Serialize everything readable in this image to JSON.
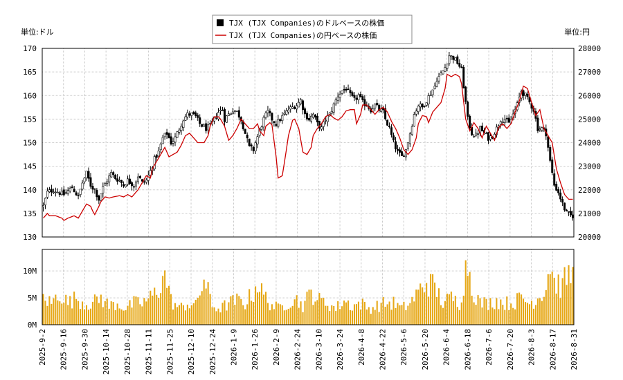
{
  "chart_data": {
    "type": "candlestick",
    "legend": {
      "placement": "top-center",
      "items": [
        {
          "label": "TJX (TJX Companies)のドルベースの株価",
          "color": "#000000",
          "marker": "square"
        },
        {
          "label": "TJX (TJX Companies)の円ベースの株価",
          "color": "#cc0000",
          "marker": "line"
        }
      ]
    },
    "left_axis": {
      "unit_label": "単位:ドル",
      "ylim": [
        130,
        170
      ],
      "ticks": [
        "130",
        "135",
        "140",
        "145",
        "150",
        "155",
        "160",
        "165",
        "170"
      ]
    },
    "right_axis": {
      "unit_label": "単位:円",
      "ylim": [
        20000,
        28000
      ],
      "ticks": [
        "20000",
        "21000",
        "22000",
        "23000",
        "24000",
        "25000",
        "26000",
        "27000",
        "28000"
      ]
    },
    "volume_axis": {
      "ylim": [
        0,
        14000000
      ],
      "ticks": [
        "0M",
        "5M",
        "10M"
      ]
    },
    "x_tick_labels": [
      "2025-9-2",
      "2025-9-16",
      "2025-9-30",
      "2025-10-14",
      "2025-10-28",
      "2025-11-11",
      "2025-11-25",
      "2025-12-10",
      "2025-12-24",
      "2026-1-9",
      "2026-1-26",
      "2026-2-9",
      "2026-2-24",
      "2026-3-10",
      "2026-3-24",
      "2026-4-8",
      "2026-4-22",
      "2026-5-6",
      "2026-5-20",
      "2026-6-4",
      "2026-6-18",
      "2026-7-6",
      "2026-7-20",
      "2026-8-3",
      "2026-8-17",
      "2026-8-31"
    ],
    "usd_close_anchors": [
      [
        0,
        136.5
      ],
      [
        2,
        139.5
      ],
      [
        5,
        140
      ],
      [
        10,
        139
      ],
      [
        14,
        140.5
      ],
      [
        17,
        138.5
      ],
      [
        19,
        141.5
      ],
      [
        21,
        143.5
      ],
      [
        23,
        141
      ],
      [
        25,
        140
      ],
      [
        27,
        138
      ],
      [
        29,
        140.5
      ],
      [
        31,
        142
      ],
      [
        33,
        143.5
      ],
      [
        35,
        142.5
      ],
      [
        37,
        142
      ],
      [
        39,
        141
      ],
      [
        41,
        142
      ],
      [
        44,
        141
      ],
      [
        46,
        143
      ],
      [
        48,
        141.5
      ],
      [
        50,
        142
      ],
      [
        52,
        144
      ],
      [
        54,
        146.5
      ],
      [
        56,
        148
      ],
      [
        58,
        151
      ],
      [
        60,
        152
      ],
      [
        62,
        150
      ],
      [
        64,
        151
      ],
      [
        66,
        153
      ],
      [
        68,
        155
      ],
      [
        70,
        156
      ],
      [
        72,
        156
      ],
      [
        74,
        155.5
      ],
      [
        76,
        154
      ],
      [
        79,
        153
      ],
      [
        81,
        153.5
      ],
      [
        83,
        155
      ],
      [
        85,
        156.5
      ],
      [
        87,
        157
      ],
      [
        88,
        155
      ],
      [
        90,
        156
      ],
      [
        92,
        157
      ],
      [
        94,
        156.5
      ],
      [
        96,
        155
      ],
      [
        98,
        152
      ],
      [
        100,
        149
      ],
      [
        102,
        148.5
      ],
      [
        103,
        150
      ],
      [
        105,
        152.5
      ],
      [
        107,
        155
      ],
      [
        109,
        156.5
      ],
      [
        111,
        155
      ],
      [
        113,
        154
      ],
      [
        115,
        155
      ],
      [
        117,
        156
      ],
      [
        119,
        157
      ],
      [
        121,
        157.5
      ],
      [
        123,
        158
      ],
      [
        125,
        159
      ],
      [
        127,
        156
      ],
      [
        129,
        155
      ],
      [
        131,
        156
      ],
      [
        133,
        154
      ],
      [
        135,
        153
      ],
      [
        137,
        155
      ],
      [
        139,
        156
      ],
      [
        141,
        158
      ],
      [
        143,
        160
      ],
      [
        145,
        161
      ],
      [
        147,
        161.5
      ],
      [
        149,
        160
      ],
      [
        151,
        159
      ],
      [
        153,
        160
      ],
      [
        155,
        158.5
      ],
      [
        157,
        158
      ],
      [
        159,
        157
      ],
      [
        161,
        158
      ],
      [
        163,
        157
      ],
      [
        165,
        156.5
      ],
      [
        166,
        155
      ],
      [
        168,
        153
      ],
      [
        170,
        150
      ],
      [
        172,
        148
      ],
      [
        174,
        147
      ],
      [
        176,
        148.5
      ],
      [
        178,
        152
      ],
      [
        180,
        156
      ],
      [
        182,
        158
      ],
      [
        184,
        157.5
      ],
      [
        186,
        159
      ],
      [
        188,
        160.5
      ],
      [
        190,
        162
      ],
      [
        191,
        163.5
      ],
      [
        193,
        164.5
      ],
      [
        195,
        166
      ],
      [
        197,
        168.5
      ],
      [
        199,
        168
      ],
      [
        201,
        167
      ],
      [
        203,
        165.5
      ],
      [
        204,
        162
      ],
      [
        206,
        155
      ],
      [
        208,
        152
      ],
      [
        210,
        151.5
      ],
      [
        212,
        153
      ],
      [
        214,
        152
      ],
      [
        216,
        151
      ],
      [
        218,
        151.5
      ],
      [
        220,
        153
      ],
      [
        222,
        155
      ],
      [
        224,
        155
      ],
      [
        226,
        154
      ],
      [
        228,
        156
      ],
      [
        230,
        158
      ],
      [
        232,
        161
      ],
      [
        234,
        160
      ],
      [
        236,
        158.5
      ],
      [
        238,
        157
      ],
      [
        240,
        153
      ],
      [
        242,
        153
      ],
      [
        244,
        152
      ],
      [
        246,
        146
      ],
      [
        248,
        141
      ],
      [
        250,
        139.5
      ],
      [
        252,
        137
      ],
      [
        254,
        135
      ],
      [
        256,
        134.5
      ]
    ],
    "jpy_close_anchors": [
      [
        0,
        20800
      ],
      [
        2,
        21000
      ],
      [
        3,
        20900
      ],
      [
        6,
        20900
      ],
      [
        9,
        20800
      ],
      [
        10,
        20700
      ],
      [
        12,
        20800
      ],
      [
        15,
        20900
      ],
      [
        17,
        20800
      ],
      [
        19,
        21100
      ],
      [
        21,
        21400
      ],
      [
        23,
        21300
      ],
      [
        24,
        21100
      ],
      [
        25,
        20950
      ],
      [
        27,
        21300
      ],
      [
        28,
        21500
      ],
      [
        30,
        21700
      ],
      [
        32,
        21650
      ],
      [
        34,
        21700
      ],
      [
        37,
        21750
      ],
      [
        39,
        21700
      ],
      [
        41,
        21800
      ],
      [
        43,
        21700
      ],
      [
        45,
        21900
      ],
      [
        46,
        22000
      ],
      [
        48,
        22300
      ],
      [
        50,
        22600
      ],
      [
        52,
        22500
      ],
      [
        53,
        22900
      ],
      [
        55,
        23200
      ],
      [
        57,
        23500
      ],
      [
        59,
        23800
      ],
      [
        61,
        23400
      ],
      [
        63,
        23500
      ],
      [
        65,
        23600
      ],
      [
        67,
        23900
      ],
      [
        69,
        24300
      ],
      [
        71,
        24400
      ],
      [
        73,
        24200
      ],
      [
        75,
        24000
      ],
      [
        78,
        24000
      ],
      [
        80,
        24300
      ],
      [
        81,
        24700
      ],
      [
        83,
        25100
      ],
      [
        85,
        25100
      ],
      [
        86,
        25000
      ],
      [
        88,
        24700
      ],
      [
        90,
        24100
      ],
      [
        92,
        24300
      ],
      [
        94,
        24600
      ],
      [
        96,
        25000
      ],
      [
        98,
        24800
      ],
      [
        100,
        24600
      ],
      [
        102,
        24600
      ],
      [
        104,
        24800
      ],
      [
        105,
        24500
      ],
      [
        107,
        24300
      ],
      [
        108,
        24700
      ],
      [
        110,
        24850
      ],
      [
        111,
        24750
      ],
      [
        113,
        23400
      ],
      [
        114,
        22500
      ],
      [
        116,
        22600
      ],
      [
        118,
        23700
      ],
      [
        119,
        24300
      ],
      [
        121,
        24950
      ],
      [
        122,
        25000
      ],
      [
        124,
        24600
      ],
      [
        126,
        23600
      ],
      [
        128,
        23500
      ],
      [
        130,
        23800
      ],
      [
        131,
        24300
      ],
      [
        133,
        24600
      ],
      [
        135,
        24800
      ],
      [
        137,
        25100
      ],
      [
        139,
        25200
      ],
      [
        141,
        25050
      ],
      [
        143,
        24950
      ],
      [
        145,
        25100
      ],
      [
        147,
        25350
      ],
      [
        149,
        25400
      ],
      [
        151,
        25400
      ],
      [
        152,
        24800
      ],
      [
        154,
        25200
      ],
      [
        155,
        25600
      ],
      [
        157,
        25600
      ],
      [
        159,
        25400
      ],
      [
        161,
        25200
      ],
      [
        163,
        25400
      ],
      [
        165,
        25500
      ],
      [
        167,
        25300
      ],
      [
        169,
        24900
      ],
      [
        171,
        24600
      ],
      [
        173,
        24200
      ],
      [
        175,
        23700
      ],
      [
        177,
        23500
      ],
      [
        179,
        23700
      ],
      [
        181,
        24200
      ],
      [
        182,
        24800
      ],
      [
        184,
        25150
      ],
      [
        186,
        25100
      ],
      [
        187,
        24850
      ],
      [
        189,
        25300
      ],
      [
        191,
        25500
      ],
      [
        193,
        25700
      ],
      [
        195,
        26300
      ],
      [
        196,
        26900
      ],
      [
        198,
        26800
      ],
      [
        200,
        26900
      ],
      [
        202,
        26800
      ],
      [
        203,
        26500
      ],
      [
        205,
        25000
      ],
      [
        207,
        24500
      ],
      [
        209,
        24850
      ],
      [
        211,
        24600
      ],
      [
        213,
        24200
      ],
      [
        215,
        24700
      ],
      [
        217,
        24400
      ],
      [
        219,
        24100
      ],
      [
        221,
        24650
      ],
      [
        223,
        24800
      ],
      [
        225,
        24600
      ],
      [
        227,
        24800
      ],
      [
        229,
        25300
      ],
      [
        231,
        25750
      ],
      [
        233,
        26400
      ],
      [
        235,
        26300
      ],
      [
        237,
        25700
      ],
      [
        239,
        25150
      ],
      [
        241,
        25400
      ],
      [
        243,
        24600
      ],
      [
        245,
        24300
      ],
      [
        247,
        24000
      ],
      [
        249,
        22900
      ],
      [
        251,
        22300
      ],
      [
        253,
        21800
      ],
      [
        255,
        21600
      ],
      [
        257,
        21600
      ]
    ],
    "volume_anchors_millions": [
      [
        0,
        5
      ],
      [
        4,
        4
      ],
      [
        8,
        6
      ],
      [
        12,
        4
      ],
      [
        16,
        5
      ],
      [
        20,
        4
      ],
      [
        24,
        4
      ],
      [
        28,
        5
      ],
      [
        32,
        3.5
      ],
      [
        36,
        4
      ],
      [
        40,
        3
      ],
      [
        44,
        4
      ],
      [
        48,
        4
      ],
      [
        52,
        5
      ],
      [
        56,
        6.5
      ],
      [
        58,
        9.5
      ],
      [
        60,
        8
      ],
      [
        62,
        4.5
      ],
      [
        66,
        3
      ],
      [
        70,
        4
      ],
      [
        74,
        3.5
      ],
      [
        78,
        8.5
      ],
      [
        82,
        3.5
      ],
      [
        86,
        3
      ],
      [
        90,
        4
      ],
      [
        94,
        4.5
      ],
      [
        98,
        4
      ],
      [
        102,
        6
      ],
      [
        104,
        8
      ],
      [
        106,
        6
      ],
      [
        110,
        4
      ],
      [
        114,
        3
      ],
      [
        118,
        4
      ],
      [
        122,
        5
      ],
      [
        126,
        3.5
      ],
      [
        130,
        6
      ],
      [
        134,
        4.5
      ],
      [
        138,
        4
      ],
      [
        142,
        3
      ],
      [
        146,
        4.5
      ],
      [
        150,
        3.5
      ],
      [
        154,
        4
      ],
      [
        158,
        3
      ],
      [
        162,
        3.5
      ],
      [
        166,
        4
      ],
      [
        170,
        4
      ],
      [
        174,
        3
      ],
      [
        178,
        4
      ],
      [
        182,
        6
      ],
      [
        186,
        8
      ],
      [
        190,
        7
      ],
      [
        194,
        4
      ],
      [
        198,
        5
      ],
      [
        202,
        4
      ],
      [
        206,
        12
      ],
      [
        208,
        7
      ],
      [
        212,
        4
      ],
      [
        216,
        4
      ],
      [
        220,
        4.5
      ],
      [
        224,
        4
      ],
      [
        228,
        4
      ],
      [
        232,
        5
      ],
      [
        236,
        4
      ],
      [
        240,
        5
      ],
      [
        244,
        7
      ],
      [
        246,
        12
      ],
      [
        248,
        8
      ],
      [
        252,
        7
      ],
      [
        254,
        9
      ]
    ]
  }
}
